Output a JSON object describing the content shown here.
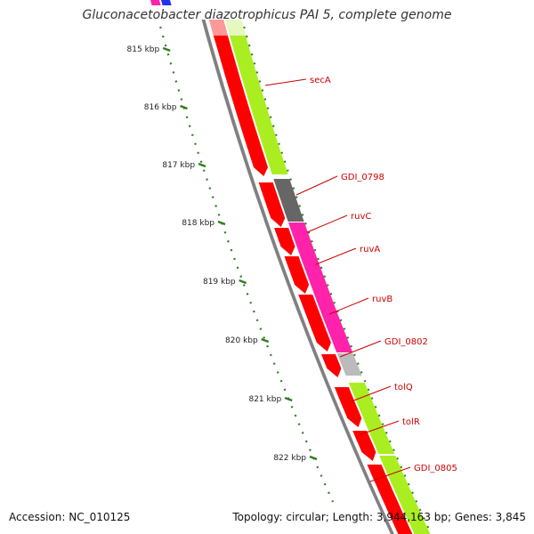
{
  "title": "Gluconacetobacter diazotrophicus PAI 5, complete genome",
  "footer": {
    "accession": "Accession: NC_010125",
    "summary": "Topology: circular; Length: 3,944,163 bp; Genes: 3,845"
  },
  "colors": {
    "backbone": "#808080",
    "cds_track": "#ff0000",
    "ticks": "#2e7d1e",
    "gene_labels": "#cc0000"
  },
  "scale": {
    "unit": "kbp",
    "ticks": [
      {
        "label": "815 kbp"
      },
      {
        "label": "816 kbp"
      },
      {
        "label": "817 kbp"
      },
      {
        "label": "818 kbp"
      },
      {
        "label": "819 kbp"
      },
      {
        "label": "820 kbp"
      },
      {
        "label": "821 kbp"
      },
      {
        "label": "822 kbp"
      }
    ]
  },
  "genes": [
    {
      "name": "secA",
      "color": "#aaee22"
    },
    {
      "name": "GDI_0798",
      "color": "#666666"
    },
    {
      "name": "ruvC",
      "color": "#ff22aa"
    },
    {
      "name": "ruvA",
      "color": "#ff22aa"
    },
    {
      "name": "ruvB",
      "color": "#ff22aa"
    },
    {
      "name": "GDI_0802",
      "color": "#bbbbbb"
    },
    {
      "name": "tolQ",
      "color": "#aaee22"
    },
    {
      "name": "tolR",
      "color": "#aaee22"
    },
    {
      "name": "GDI_0805",
      "color": "#aaee22"
    }
  ]
}
